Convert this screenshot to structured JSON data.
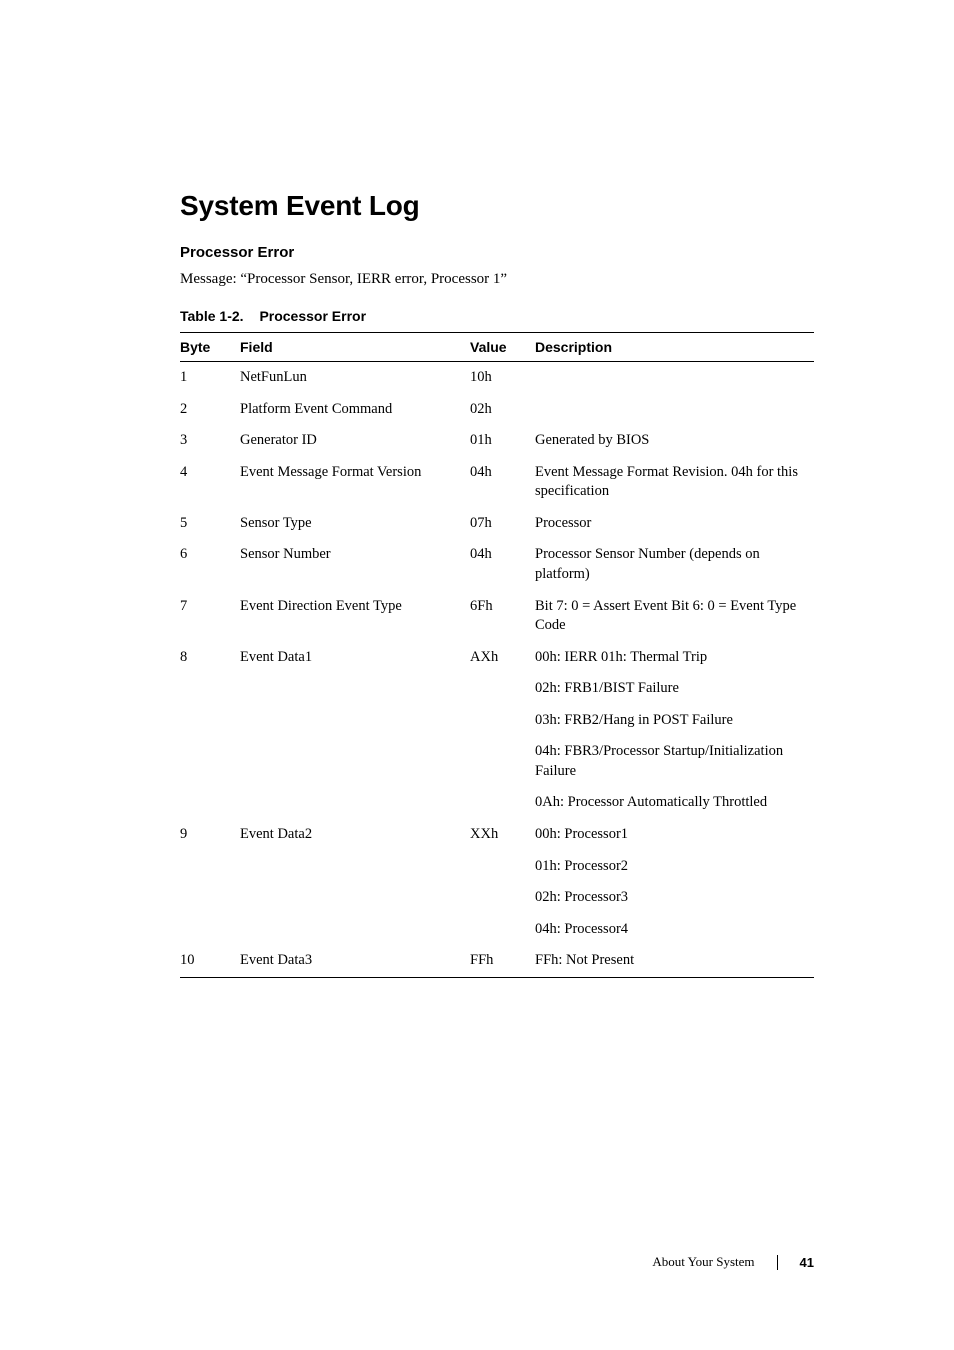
{
  "heading": "System Event Log",
  "subheading": "Processor Error",
  "message": "Message: “Processor Sensor, IERR error, Processor 1”",
  "table": {
    "caption_num": "Table 1-2.",
    "caption_title": "Processor Error",
    "headers": {
      "byte": "Byte",
      "field": "Field",
      "value": "Value",
      "desc": "Description"
    },
    "rows": [
      {
        "byte": "1",
        "field": "NetFunLun",
        "value": "10h",
        "desc": ""
      },
      {
        "byte": "2",
        "field": "Platform Event Command",
        "value": "02h",
        "desc": ""
      },
      {
        "byte": "3",
        "field": "Generator ID",
        "value": "01h",
        "desc": "Generated by BIOS"
      },
      {
        "byte": "4",
        "field": "Event Message Format Version",
        "value": "04h",
        "desc": "Event Message Format Revision. 04h for this specification"
      },
      {
        "byte": "5",
        "field": "Sensor Type",
        "value": "07h",
        "desc": "Processor"
      },
      {
        "byte": "6",
        "field": "Sensor Number",
        "value": "04h",
        "desc": "Processor Sensor Number (depends on platform)"
      },
      {
        "byte": "7",
        "field": "Event Direction Event Type",
        "value": "6Fh",
        "desc": "Bit 7: 0 = Assert Event Bit 6: 0 = Event Type Code"
      },
      {
        "byte": "8",
        "field": "Event Data1",
        "value": "AXh",
        "desc": "00h: IERR 01h: Thermal Trip"
      },
      {
        "byte": "",
        "field": "",
        "value": "",
        "desc": "02h: FRB1/BIST Failure"
      },
      {
        "byte": "",
        "field": "",
        "value": "",
        "desc": "03h: FRB2/Hang in POST Failure"
      },
      {
        "byte": "",
        "field": "",
        "value": "",
        "desc": "04h: FBR3/Processor Startup/Initialization Failure"
      },
      {
        "byte": "",
        "field": "",
        "value": "",
        "desc": "0Ah: Processor Automatically Throttled"
      },
      {
        "byte": "9",
        "field": "Event Data2",
        "value": "XXh",
        "desc": "00h: Processor1"
      },
      {
        "byte": "",
        "field": "",
        "value": "",
        "desc": "01h: Processor2"
      },
      {
        "byte": "",
        "field": "",
        "value": "",
        "desc": "02h: Processor3"
      },
      {
        "byte": "",
        "field": "",
        "value": "",
        "desc": "04h: Processor4"
      },
      {
        "byte": "10",
        "field": "Event Data3",
        "value": "FFh",
        "desc": "FFh: Not Present"
      }
    ]
  },
  "footer": {
    "section": "About Your System",
    "page": "41"
  }
}
